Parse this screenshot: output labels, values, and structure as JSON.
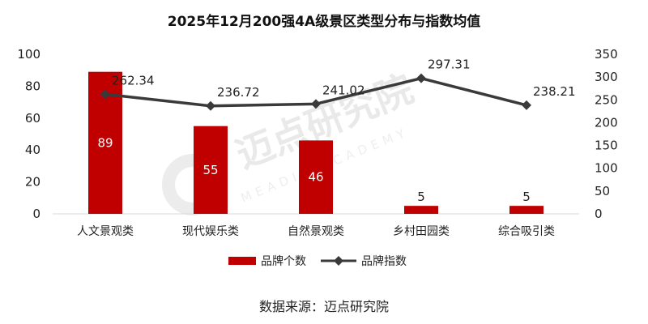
{
  "chart_data": {
    "type": "bar+line",
    "title": "2025年12月200强4A级景区类型分布与指数均值",
    "categories": [
      "人文景观类",
      "现代娱乐类",
      "自然景观类",
      "乡村田园类",
      "综合吸引类"
    ],
    "series": [
      {
        "name": "品牌个数",
        "type": "bar",
        "axis": "left",
        "color": "#c00000",
        "values": [
          89,
          55,
          46,
          5,
          5
        ]
      },
      {
        "name": "品牌指数",
        "type": "line",
        "axis": "right",
        "color": "#3a3a3a",
        "values": [
          262.34,
          236.72,
          241.02,
          297.31,
          238.21
        ]
      }
    ],
    "bar_value_labels": [
      "89",
      "55",
      "46",
      "5",
      "5"
    ],
    "line_value_labels": [
      "262.34",
      "236.72",
      "241.02",
      "297.31",
      "238.21"
    ],
    "y_left": {
      "min": 0,
      "max": 100,
      "ticks": [
        "0",
        "20",
        "40",
        "60",
        "80",
        "100"
      ]
    },
    "y_right": {
      "min": 0,
      "max": 350,
      "ticks": [
        "0",
        "50",
        "100",
        "150",
        "200",
        "250",
        "300",
        "350"
      ]
    },
    "grid": false,
    "legend_position": "bottom",
    "bar_label_inside_color": "#ffffff",
    "bar_label_outside_color": "#222222"
  },
  "source_text": "数据来源：迈点研究院",
  "watermark": {
    "text": "迈点研究院",
    "subtext": "MEADIN ACADEMY"
  }
}
